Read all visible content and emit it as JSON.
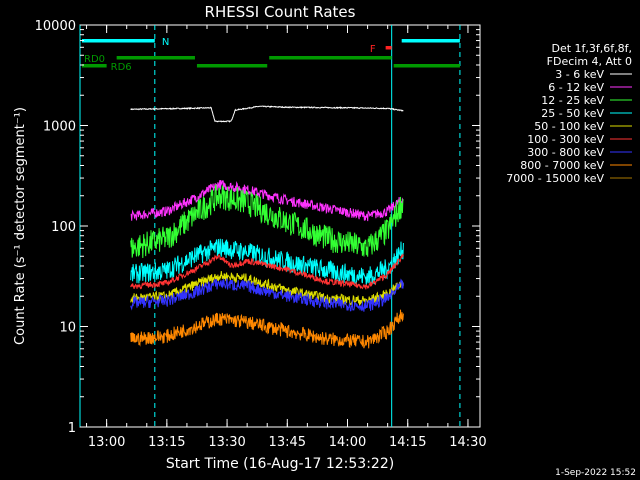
{
  "chart_data": {
    "type": "line",
    "title": "RHESSI Count Rates",
    "xlabel": "Start Time (16-Aug-17 12:53:22)",
    "ylabel": "Count Rate (s⁻¹ detector segment⁻¹)",
    "y_scale": "log",
    "xlim": [
      "12:53:22",
      "14:33:00"
    ],
    "ylim": [
      1,
      10000
    ],
    "x_ticks": [
      "13:00",
      "13:15",
      "13:30",
      "13:45",
      "14:00",
      "14:15",
      "14:30"
    ],
    "y_ticks": [
      "1",
      "10",
      "100",
      "1000",
      "10000"
    ],
    "legend_header": [
      "Det 1f,3f,6f,8f,",
      "FDecim 4, Att 0"
    ],
    "legend_position": "right",
    "series": [
      {
        "name": "3 - 6 keV",
        "color": "#ffffff",
        "x": [
          "13:06",
          "13:20",
          "13:26",
          "13:27",
          "13:31",
          "13:32",
          "13:38",
          "13:45",
          "14:00",
          "14:10",
          "14:14"
        ],
        "values": [
          1450,
          1480,
          1500,
          1100,
          1100,
          1420,
          1550,
          1520,
          1500,
          1480,
          1400
        ]
      },
      {
        "name": "6 - 12 keV",
        "color": "#ff33ff",
        "x": [
          "13:06",
          "13:15",
          "13:22",
          "13:28",
          "13:35",
          "13:45",
          "13:55",
          "14:05",
          "14:10",
          "14:14"
        ],
        "values": [
          125,
          140,
          190,
          260,
          230,
          180,
          150,
          125,
          140,
          190
        ]
      },
      {
        "name": "12 - 25 keV",
        "color": "#33ff33",
        "x": [
          "13:06",
          "13:15",
          "13:22",
          "13:28",
          "13:35",
          "13:45",
          "13:55",
          "14:05",
          "14:10",
          "14:14"
        ],
        "values": [
          60,
          75,
          130,
          200,
          170,
          110,
          75,
          60,
          90,
          180
        ]
      },
      {
        "name": "25 - 50 keV",
        "color": "#00ffff",
        "x": [
          "13:06",
          "13:15",
          "13:22",
          "13:28",
          "13:35",
          "13:45",
          "13:55",
          "14:05",
          "14:10",
          "14:14"
        ],
        "values": [
          33,
          36,
          50,
          62,
          55,
          44,
          36,
          31,
          38,
          60
        ]
      },
      {
        "name": "50 - 100 keV",
        "color": "#dddd00",
        "x": [
          "13:06",
          "13:15",
          "13:22",
          "13:28",
          "13:35",
          "13:45",
          "13:55",
          "14:05",
          "14:10",
          "14:14"
        ],
        "values": [
          19,
          20,
          26,
          32,
          30,
          23,
          19,
          18,
          21,
          28
        ]
      },
      {
        "name": "100 - 300 keV",
        "color": "#ff3333",
        "x": [
          "13:06",
          "13:15",
          "13:22",
          "13:28",
          "13:31",
          "13:35",
          "13:45",
          "13:55",
          "14:05",
          "14:10",
          "14:14"
        ],
        "values": [
          25,
          27,
          37,
          50,
          40,
          45,
          37,
          28,
          25,
          33,
          52
        ]
      },
      {
        "name": "300 - 800 keV",
        "color": "#3333ff",
        "x": [
          "13:06",
          "13:15",
          "13:22",
          "13:28",
          "13:35",
          "13:45",
          "13:55",
          "14:05",
          "14:10",
          "14:14"
        ],
        "values": [
          17,
          18,
          22,
          27,
          25,
          20,
          17,
          16,
          19,
          27
        ]
      },
      {
        "name": "800 - 7000 keV",
        "color": "#ff8800",
        "x": [
          "13:06",
          "13:15",
          "13:22",
          "13:28",
          "13:35",
          "13:45",
          "13:55",
          "14:05",
          "14:10",
          "14:14"
        ],
        "values": [
          7.5,
          8,
          10,
          12,
          11,
          9,
          7.5,
          7,
          9,
          14
        ]
      },
      {
        "name": "7000 - 15000 keV",
        "color": "#aa7700",
        "x": [],
        "values": []
      }
    ],
    "flag_bars": {
      "N": {
        "color": "#00ffff",
        "segments": [
          [
            "12:53:22",
            "13:12"
          ],
          [
            "14:13",
            "14:28"
          ]
        ]
      },
      "F": {
        "color": "#ff2222",
        "segments": [
          [
            "14:09",
            "14:11"
          ]
        ]
      },
      "RD0": {
        "color": "#009900",
        "segments": [
          [
            "13:02",
            "13:22"
          ],
          [
            "13:40",
            "14:11"
          ]
        ]
      },
      "RD6": {
        "color": "#009900",
        "segments": [
          [
            "12:53:22",
            "13:00"
          ],
          [
            "13:22",
            "13:40"
          ],
          [
            "14:11",
            "14:28"
          ]
        ]
      }
    },
    "vertical_lines": [
      {
        "x": "12:53:22",
        "color": "#00ffff",
        "style": "solid"
      },
      {
        "x": "13:12",
        "color": "#00ffff",
        "style": "dashed"
      },
      {
        "x": "14:11",
        "color": "#00ffff",
        "style": "solid"
      },
      {
        "x": "14:28",
        "color": "#00ffff",
        "style": "dashed"
      }
    ],
    "footer": "1-Sep-2022 15:52"
  }
}
